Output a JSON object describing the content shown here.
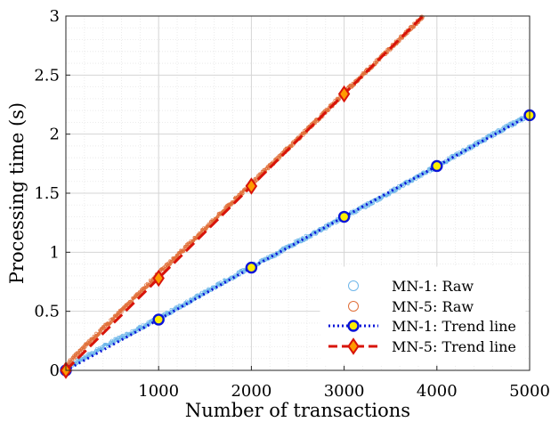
{
  "chart_data": {
    "type": "scatter",
    "title": "",
    "xlabel": "Number of transactions",
    "ylabel": "Processing time (s)",
    "xlim": [
      0,
      5000
    ],
    "ylim": [
      0,
      3
    ],
    "xticks": [
      1000,
      2000,
      3000,
      4000,
      5000
    ],
    "xtick_labels": [
      "1000",
      "2000",
      "3000",
      "4000",
      "5000"
    ],
    "yticks": [
      0,
      0.5,
      1,
      1.5,
      2,
      2.5,
      3
    ],
    "ytick_labels": [
      "0",
      "0.5",
      "1",
      "1.5",
      "2",
      "2.5",
      "3"
    ],
    "grid": true,
    "minor_grid": true,
    "legend_position": "bottom-right",
    "series": [
      {
        "name": "MN-1: Raw",
        "kind": "scatter",
        "color": "#6fb7ea",
        "marker": "circle",
        "x": [
          0,
          250,
          500,
          750,
          1000,
          1250,
          1500,
          1750,
          2000,
          2250,
          2500,
          2750,
          3000,
          3250,
          3500,
          3750,
          4000,
          4250,
          4500,
          4750,
          5000
        ],
        "y": [
          0.02,
          0.13,
          0.24,
          0.34,
          0.44,
          0.55,
          0.66,
          0.77,
          0.88,
          0.98,
          1.09,
          1.19,
          1.3,
          1.4,
          1.51,
          1.62,
          1.73,
          1.84,
          1.95,
          2.06,
          2.16
        ]
      },
      {
        "name": "MN-5: Raw",
        "kind": "scatter",
        "color": "#e0703a",
        "marker": "circle",
        "x": [
          0,
          250,
          500,
          750,
          1000,
          1250,
          1500,
          1750,
          2000,
          2250,
          2500,
          2750,
          3000,
          3250,
          3500,
          3750,
          3850
        ],
        "y": [
          0.04,
          0.24,
          0.43,
          0.62,
          0.82,
          1.01,
          1.2,
          1.39,
          1.58,
          1.77,
          1.96,
          2.15,
          2.35,
          2.54,
          2.73,
          2.92,
          3.0
        ]
      },
      {
        "name": "MN-1: Trend line",
        "kind": "line",
        "line_style": "dotted",
        "color": "#0a14d8",
        "marker_face": "#ffee00",
        "marker": "circle",
        "x": [
          0,
          1000,
          2000,
          3000,
          4000,
          5000
        ],
        "y": [
          0.0,
          0.43,
          0.87,
          1.3,
          1.73,
          2.16
        ]
      },
      {
        "name": "MN-5: Trend line",
        "kind": "line",
        "line_style": "dashed",
        "color": "#d8140a",
        "marker_face": "#ff9a00",
        "marker": "diamond",
        "x": [
          0,
          1000,
          2000,
          3000,
          3850
        ],
        "y": [
          0.0,
          0.78,
          1.56,
          2.34,
          3.0
        ]
      }
    ]
  }
}
